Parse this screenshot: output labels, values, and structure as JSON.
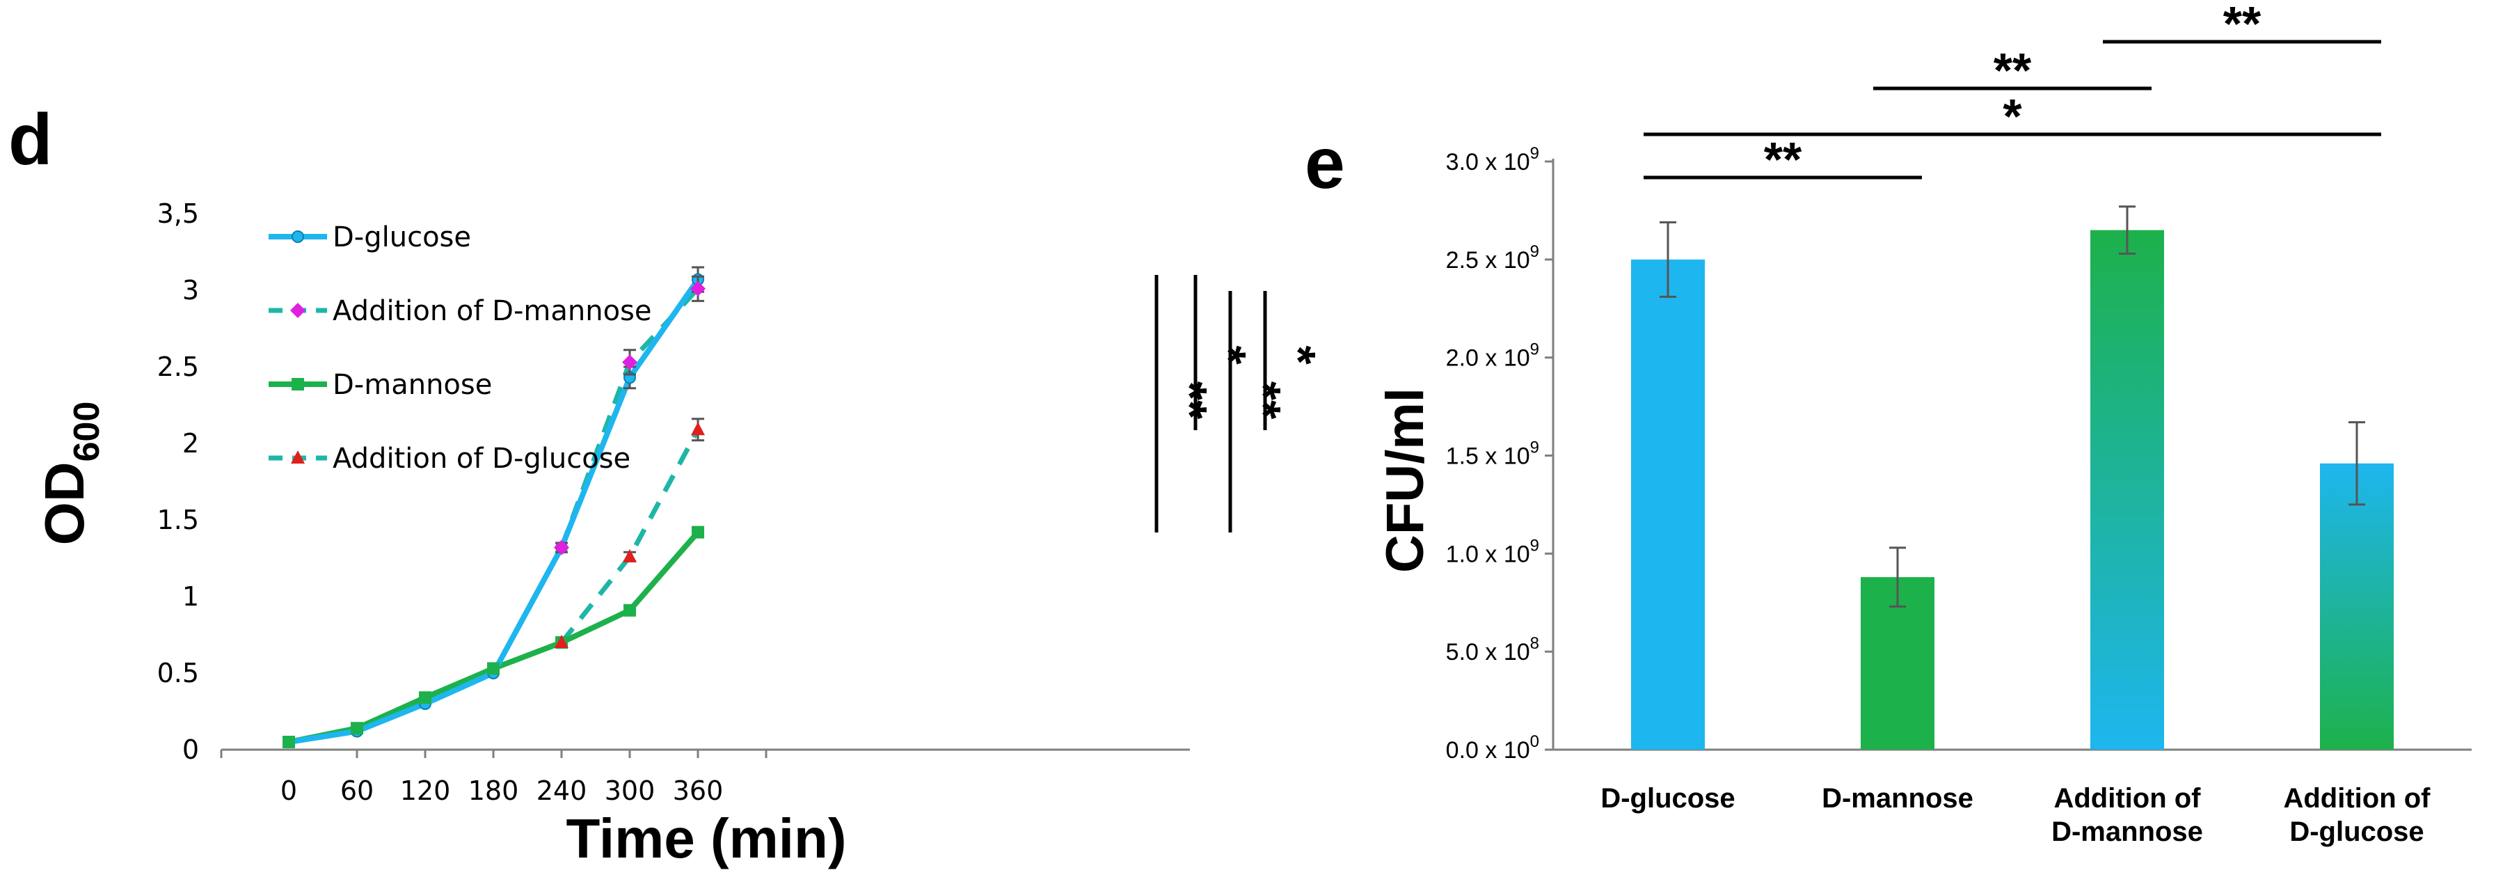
{
  "panels": {
    "d": {
      "letter": "d"
    },
    "e": {
      "letter": "e"
    }
  },
  "colors": {
    "glucose": "#1EB6EF",
    "mannose": "#1DB14B",
    "add_mannose_marker": "#E020E0",
    "add_glucose_marker": "#E0201C",
    "error": "#555555",
    "axis": "#7F7F7F"
  },
  "chart_data": [
    {
      "id": "d",
      "type": "line",
      "title": "",
      "xlabel": "Time (min)",
      "ylabel": "OD",
      "ylabel_subscript": "600",
      "x": [
        0,
        60,
        120,
        180,
        240,
        300,
        360
      ],
      "x_tick_labels": [
        "0",
        "60",
        "120",
        "180",
        "240",
        "300",
        "360"
      ],
      "ylim": [
        0,
        3.5
      ],
      "y_ticks": [
        0,
        0.5,
        1,
        1.5,
        2,
        2.5,
        3,
        3.5
      ],
      "y_tick_labels": [
        "0",
        "0.5",
        "1",
        "1.5",
        "2",
        "2.5",
        "3",
        "3,5"
      ],
      "legend_position": "top-left",
      "series": [
        {
          "name": "D-glucose",
          "color": "#1EB6EF",
          "dashed": false,
          "marker": "circle",
          "marker_color": "#1EB6EF",
          "x": [
            0,
            60,
            120,
            180,
            240,
            300,
            360
          ],
          "values": [
            0.05,
            0.12,
            0.3,
            0.5,
            1.32,
            2.43,
            3.07
          ],
          "errors": [
            0,
            0,
            0,
            0,
            0.03,
            0.07,
            0.08
          ]
        },
        {
          "name": "Addition of D-mannose",
          "color": "#1EB6A6",
          "dashed": true,
          "marker": "diamond",
          "marker_color": "#E020E0",
          "x": [
            240,
            300,
            360
          ],
          "values": [
            1.32,
            2.53,
            3.01
          ],
          "errors": [
            0.03,
            0.08,
            0.08
          ]
        },
        {
          "name": "D-mannose",
          "color": "#1DB14B",
          "dashed": false,
          "marker": "square",
          "marker_color": "#1DB14B",
          "x": [
            0,
            60,
            120,
            180,
            240,
            300,
            360
          ],
          "values": [
            0.05,
            0.14,
            0.34,
            0.53,
            0.7,
            0.91,
            1.42
          ],
          "errors": [
            0,
            0,
            0,
            0,
            0,
            0,
            0
          ]
        },
        {
          "name": "Addition of D-glucose",
          "color": "#1EB6A6",
          "dashed": true,
          "marker": "triangle",
          "marker_color": "#E0201C",
          "x": [
            240,
            300,
            360
          ],
          "values": [
            0.7,
            1.26,
            2.09
          ],
          "errors": [
            0,
            0.03,
            0.07
          ]
        }
      ],
      "significance": [
        "**",
        "*",
        "**",
        "*"
      ]
    },
    {
      "id": "e",
      "type": "bar",
      "title": "",
      "xlabel": "",
      "ylabel": "CFU/ml",
      "categories": [
        "D-glucose",
        "D-mannose",
        "Addition of D-mannose",
        "Addition of D-glucose"
      ],
      "category_lines": [
        [
          "D-glucose"
        ],
        [
          "D-mannose"
        ],
        [
          "Addition of",
          "D-mannose"
        ],
        [
          "Addition of",
          "D-glucose"
        ]
      ],
      "values": [
        2500000000,
        880000000,
        2650000000,
        1460000000
      ],
      "errors": [
        190000000,
        150000000,
        120000000,
        210000000
      ],
      "bar_fills": [
        "glucose",
        "mannose",
        "grad-down",
        "grad-up"
      ],
      "ylim": [
        0,
        3000000000
      ],
      "y_ticks": [
        0,
        500000000,
        1000000000,
        1500000000,
        2000000000,
        2500000000,
        3000000000
      ],
      "y_tick_labels": [
        {
          "mantissa": "0.0 x 10",
          "exp": "0"
        },
        {
          "mantissa": "5.0 x 10",
          "exp": "8"
        },
        {
          "mantissa": "1.0 x 10",
          "exp": "9"
        },
        {
          "mantissa": "1.5 x 10",
          "exp": "9"
        },
        {
          "mantissa": "2.0 x 10",
          "exp": "9"
        },
        {
          "mantissa": "2.5 x 10",
          "exp": "9"
        },
        {
          "mantissa": "3.0 x 10",
          "exp": "9"
        }
      ],
      "significance": [
        {
          "from": 0,
          "to": 1,
          "label": "**"
        },
        {
          "from": 0,
          "to": 3,
          "label": "*"
        },
        {
          "from": 1,
          "to": 2,
          "label": "**"
        },
        {
          "from": 2,
          "to": 3,
          "label": "**"
        }
      ]
    }
  ]
}
